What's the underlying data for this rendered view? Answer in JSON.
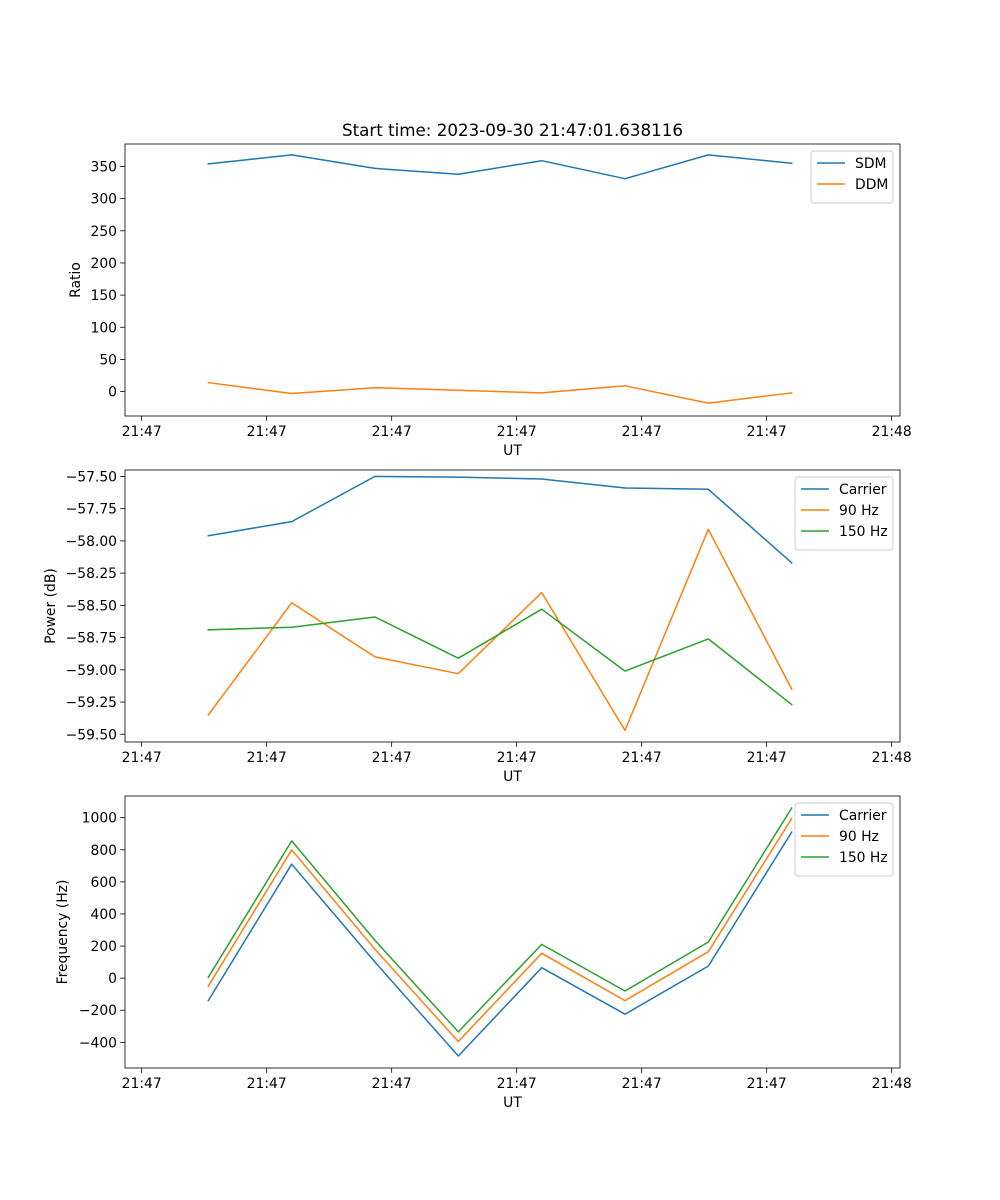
{
  "chart_data": [
    {
      "type": "line",
      "title": "Start time: 2023-09-30 21:47:01.638116",
      "xlabel": "UT",
      "ylabel": "Ratio",
      "x": [
        1,
        2,
        3,
        4,
        5,
        6,
        7,
        8
      ],
      "xlim": [
        0,
        9.3
      ],
      "ylim": [
        -38,
        385
      ],
      "xticks": [
        0.2,
        1.7,
        3.2,
        4.7,
        6.2,
        7.7,
        9.2
      ],
      "xtick_labels": [
        "21:47",
        "21:47",
        "21:47",
        "21:47",
        "21:47",
        "21:47",
        "21:48"
      ],
      "yticks": [
        0,
        50,
        100,
        150,
        200,
        250,
        300,
        350
      ],
      "ytick_labels": [
        "0",
        "50",
        "100",
        "150",
        "200",
        "250",
        "300",
        "350"
      ],
      "legend": "top-right",
      "grid": false,
      "series": [
        {
          "name": "SDM",
          "color": "#1f77b4",
          "values": [
            354,
            368,
            347,
            338,
            359,
            331,
            368,
            355
          ]
        },
        {
          "name": "DDM",
          "color": "#ff7f0e",
          "values": [
            14,
            -3,
            6,
            2,
            -2,
            9,
            -18,
            -2
          ]
        }
      ]
    },
    {
      "type": "line",
      "title": "",
      "xlabel": "UT",
      "ylabel": "Power (dB)",
      "x": [
        1,
        2,
        3,
        4,
        5,
        6,
        7,
        8
      ],
      "xlim": [
        0,
        9.3
      ],
      "ylim": [
        -59.56,
        -57.45
      ],
      "xticks": [
        0.2,
        1.7,
        3.2,
        4.7,
        6.2,
        7.7,
        9.2
      ],
      "xtick_labels": [
        "21:47",
        "21:47",
        "21:47",
        "21:47",
        "21:47",
        "21:47",
        "21:48"
      ],
      "yticks": [
        -59.5,
        -59.25,
        -59.0,
        -58.75,
        -58.5,
        -58.25,
        -58.0,
        -57.75,
        -57.5
      ],
      "ytick_labels": [
        "−59.50",
        "−59.25",
        "−59.00",
        "−58.75",
        "−58.50",
        "−58.25",
        "−58.00",
        "−57.75",
        "−57.50"
      ],
      "legend": "top-right",
      "grid": false,
      "series": [
        {
          "name": "Carrier",
          "color": "#1f77b4",
          "values": [
            -57.96,
            -57.85,
            -57.5,
            -57.505,
            -57.52,
            -57.59,
            -57.6,
            -58.17
          ]
        },
        {
          "name": "90 Hz",
          "color": "#ff7f0e",
          "values": [
            -59.35,
            -58.48,
            -58.9,
            -59.03,
            -58.4,
            -59.47,
            -57.91,
            -59.15
          ]
        },
        {
          "name": "150 Hz",
          "color": "#2ca02c",
          "values": [
            -58.69,
            -58.67,
            -58.59,
            -58.91,
            -58.53,
            -59.01,
            -58.76,
            -59.27
          ]
        }
      ]
    },
    {
      "type": "line",
      "title": "",
      "xlabel": "UT",
      "ylabel": "Frequency (Hz)",
      "x": [
        1,
        2,
        3,
        4,
        5,
        6,
        7,
        8
      ],
      "xlim": [
        0,
        9.3
      ],
      "ylim": [
        -560,
        1135
      ],
      "xticks": [
        0.2,
        1.7,
        3.2,
        4.7,
        6.2,
        7.7,
        9.2
      ],
      "xtick_labels": [
        "21:47",
        "21:47",
        "21:47",
        "21:47",
        "21:47",
        "21:47",
        "21:48"
      ],
      "yticks": [
        -400,
        -200,
        0,
        200,
        400,
        600,
        800,
        1000
      ],
      "ytick_labels": [
        "−400",
        "−200",
        "0",
        "200",
        "400",
        "600",
        "800",
        "1000"
      ],
      "legend": "top-right",
      "grid": false,
      "series": [
        {
          "name": "Carrier",
          "color": "#1f77b4",
          "values": [
            -140,
            710,
            100,
            -485,
            65,
            -225,
            75,
            910
          ]
        },
        {
          "name": "90 Hz",
          "color": "#ff7f0e",
          "values": [
            -50,
            800,
            180,
            -395,
            155,
            -140,
            165,
            995
          ]
        },
        {
          "name": "150 Hz",
          "color": "#2ca02c",
          "values": [
            5,
            855,
            235,
            -335,
            210,
            -80,
            225,
            1060
          ]
        }
      ]
    }
  ]
}
